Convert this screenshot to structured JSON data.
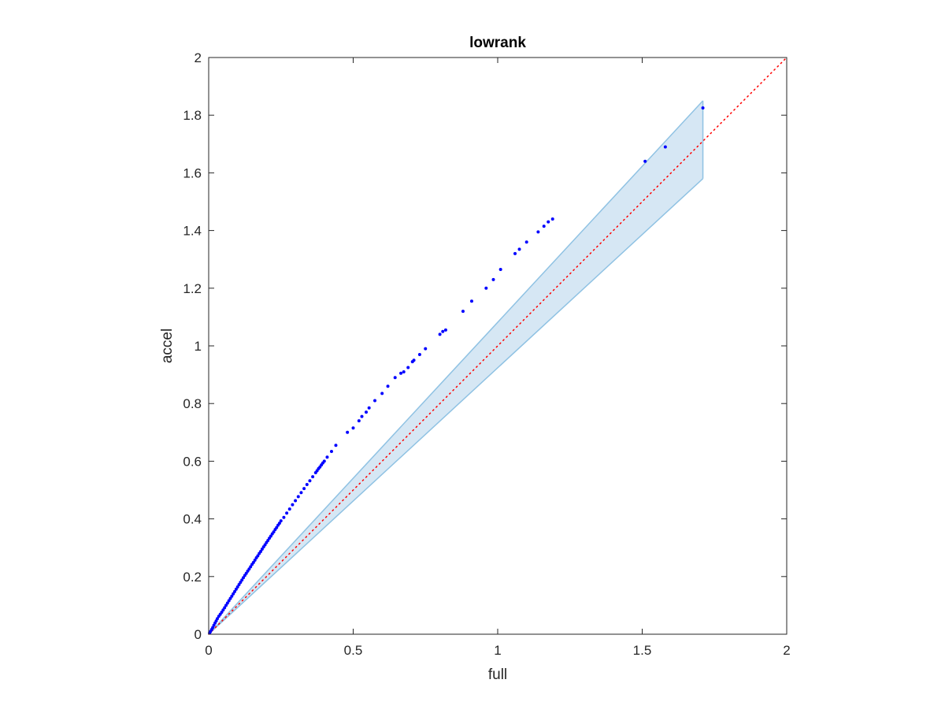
{
  "chart_data": {
    "type": "scatter",
    "title": "lowrank",
    "xlabel": "full",
    "ylabel": "accel",
    "xlim": [
      0,
      2
    ],
    "ylim": [
      0,
      2
    ],
    "xticks": [
      0,
      0.5,
      1,
      1.5,
      2
    ],
    "yticks": [
      0,
      0.2,
      0.4,
      0.6,
      0.8,
      1,
      1.2,
      1.4,
      1.6,
      1.8,
      2
    ],
    "xtick_labels": [
      "0",
      "0.5",
      "1",
      "1.5",
      "2"
    ],
    "ytick_labels": [
      "0",
      "0.2",
      "0.4",
      "0.6",
      "0.8",
      "1",
      "1.2",
      "1.4",
      "1.6",
      "1.8",
      "2"
    ],
    "box": true,
    "grid": false,
    "series": [
      {
        "kind": "points",
        "color": "#0000ff",
        "x": [
          0.003,
          0.006,
          0.01,
          0.014,
          0.018,
          0.022,
          0.026,
          0.03,
          0.035,
          0.04,
          0.045,
          0.05,
          0.055,
          0.06,
          0.065,
          0.07,
          0.075,
          0.08,
          0.085,
          0.09,
          0.095,
          0.1,
          0.105,
          0.11,
          0.115,
          0.12,
          0.125,
          0.13,
          0.135,
          0.14,
          0.145,
          0.15,
          0.155,
          0.16,
          0.165,
          0.17,
          0.175,
          0.18,
          0.185,
          0.19,
          0.195,
          0.2,
          0.205,
          0.21,
          0.215,
          0.22,
          0.225,
          0.23,
          0.235,
          0.24,
          0.245,
          0.25,
          0.26,
          0.27,
          0.28,
          0.29,
          0.3,
          0.31,
          0.32,
          0.33,
          0.34,
          0.35,
          0.36,
          0.37,
          0.375,
          0.38,
          0.385,
          0.39,
          0.395,
          0.4,
          0.41,
          0.425,
          0.44,
          0.48,
          0.5,
          0.52,
          0.53,
          0.545,
          0.555,
          0.575,
          0.6,
          0.62,
          0.645,
          0.665,
          0.675,
          0.69,
          0.705,
          0.71,
          0.73,
          0.75,
          0.8,
          0.81,
          0.82,
          0.88,
          0.91,
          0.96,
          0.985,
          1.01,
          1.06,
          1.075,
          1.1,
          1.14,
          1.16,
          1.175,
          1.19,
          1.51,
          1.58,
          1.71
        ],
        "y": [
          0.004,
          0.009,
          0.016,
          0.023,
          0.031,
          0.039,
          0.046,
          0.054,
          0.062,
          0.069,
          0.076,
          0.084,
          0.092,
          0.1,
          0.108,
          0.116,
          0.124,
          0.132,
          0.14,
          0.148,
          0.156,
          0.164,
          0.172,
          0.18,
          0.188,
          0.196,
          0.204,
          0.211,
          0.219,
          0.226,
          0.234,
          0.242,
          0.249,
          0.257,
          0.265,
          0.272,
          0.28,
          0.287,
          0.295,
          0.303,
          0.31,
          0.318,
          0.325,
          0.333,
          0.34,
          0.348,
          0.355,
          0.363,
          0.37,
          0.378,
          0.385,
          0.393,
          0.405,
          0.42,
          0.434,
          0.449,
          0.463,
          0.477,
          0.491,
          0.505,
          0.519,
          0.532,
          0.546,
          0.56,
          0.567,
          0.574,
          0.58,
          0.587,
          0.594,
          0.6,
          0.614,
          0.634,
          0.655,
          0.7,
          0.715,
          0.74,
          0.755,
          0.77,
          0.785,
          0.81,
          0.835,
          0.86,
          0.89,
          0.905,
          0.91,
          0.925,
          0.945,
          0.95,
          0.97,
          0.99,
          1.04,
          1.05,
          1.055,
          1.12,
          1.155,
          1.2,
          1.23,
          1.265,
          1.32,
          1.335,
          1.36,
          1.395,
          1.415,
          1.43,
          1.44,
          1.64,
          1.69,
          1.825
        ]
      },
      {
        "kind": "reference-line",
        "style": "dotted",
        "color": "#ff0000",
        "x": [
          0,
          2
        ],
        "y": [
          0,
          2
        ]
      },
      {
        "kind": "band",
        "fill": "#d6e7f4",
        "stroke": "#8fc2e3",
        "x": [
          0,
          1.71
        ],
        "upper": [
          0,
          1.85
        ],
        "lower": [
          0,
          1.58
        ]
      }
    ]
  }
}
